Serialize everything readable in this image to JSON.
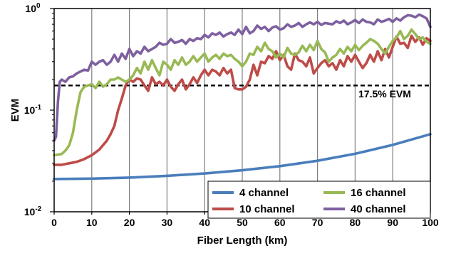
{
  "chart_data": {
    "type": "line",
    "xlabel": "Fiber Length (km)",
    "ylabel": "EVM",
    "xlim": [
      0,
      100
    ],
    "ylim": [
      0.01,
      1
    ],
    "y_scale": "log",
    "x_ticks": [
      0,
      10,
      20,
      30,
      40,
      50,
      60,
      70,
      80,
      90,
      100
    ],
    "x_tick_labels": [
      "0",
      "10",
      "20",
      "30",
      "40",
      "50",
      "60",
      "70",
      "80",
      "90",
      "100"
    ],
    "y_ticks": [
      {
        "value": 0.01,
        "base": "10",
        "exp": "-2"
      },
      {
        "value": 0.1,
        "base": "10",
        "exp": "-1"
      },
      {
        "value": 1,
        "base": "10",
        "exp": "0"
      }
    ],
    "grid": "vertical",
    "legend_position": "bottom-right",
    "reference_line": {
      "value": 0.175,
      "label": "17.5% EVM",
      "style": "dashed",
      "color": "#000000"
    },
    "series": [
      {
        "name": "4 channel",
        "color": "#4a7ebb",
        "x": [
          0,
          10,
          20,
          30,
          40,
          50,
          60,
          70,
          80,
          90,
          100
        ],
        "y": [
          0.021,
          0.0212,
          0.0217,
          0.0226,
          0.0238,
          0.0256,
          0.0281,
          0.0318,
          0.0372,
          0.0455,
          0.058
        ]
      },
      {
        "name": "10 channel",
        "color": "#be4b48",
        "x": [
          0,
          2,
          4,
          6,
          8,
          10,
          12,
          14,
          15,
          16,
          17,
          18,
          19,
          20,
          21,
          22,
          23,
          24,
          25,
          26,
          27,
          28,
          29,
          30,
          31,
          32,
          33,
          34,
          35,
          36,
          37,
          38,
          39,
          40,
          41,
          42,
          43,
          44,
          45,
          46,
          47,
          48,
          49,
          50,
          51,
          52,
          53,
          54,
          55,
          56,
          57,
          58,
          59,
          60,
          61,
          62,
          63,
          64,
          65,
          66,
          67,
          68,
          69,
          70,
          71,
          72,
          73,
          74,
          75,
          76,
          77,
          78,
          79,
          80,
          81,
          82,
          83,
          84,
          85,
          86,
          87,
          88,
          89,
          90,
          91,
          92,
          93,
          94,
          95,
          96,
          97,
          98,
          99,
          100
        ],
        "y": [
          0.029,
          0.029,
          0.03,
          0.031,
          0.033,
          0.036,
          0.041,
          0.05,
          0.058,
          0.07,
          0.1,
          0.13,
          0.175,
          0.2,
          0.19,
          0.205,
          0.2,
          0.175,
          0.155,
          0.21,
          0.18,
          0.19,
          0.175,
          0.2,
          0.17,
          0.155,
          0.18,
          0.2,
          0.16,
          0.18,
          0.21,
          0.185,
          0.22,
          0.25,
          0.22,
          0.25,
          0.24,
          0.22,
          0.26,
          0.23,
          0.25,
          0.165,
          0.16,
          0.16,
          0.17,
          0.2,
          0.28,
          0.22,
          0.3,
          0.29,
          0.34,
          0.32,
          0.38,
          0.31,
          0.35,
          0.27,
          0.25,
          0.36,
          0.31,
          0.3,
          0.27,
          0.33,
          0.23,
          0.26,
          0.29,
          0.31,
          0.27,
          0.29,
          0.25,
          0.31,
          0.27,
          0.34,
          0.3,
          0.35,
          0.3,
          0.26,
          0.29,
          0.35,
          0.3,
          0.38,
          0.31,
          0.4,
          0.33,
          0.42,
          0.53,
          0.45,
          0.46,
          0.41,
          0.54,
          0.47,
          0.52,
          0.44,
          0.51,
          0.48
        ]
      },
      {
        "name": "16 channel",
        "color": "#98b954",
        "x": [
          0,
          2,
          3,
          4,
          5,
          6,
          7,
          8,
          9,
          10,
          11,
          12,
          13,
          14,
          15,
          16,
          17,
          18,
          19,
          20,
          21,
          22,
          23,
          24,
          25,
          26,
          27,
          28,
          29,
          30,
          31,
          32,
          33,
          34,
          35,
          36,
          37,
          38,
          39,
          40,
          41,
          42,
          43,
          44,
          45,
          46,
          47,
          48,
          49,
          50,
          51,
          52,
          53,
          54,
          55,
          56,
          57,
          58,
          59,
          60,
          61,
          62,
          63,
          64,
          65,
          66,
          67,
          68,
          69,
          70,
          71,
          72,
          73,
          74,
          75,
          76,
          77,
          78,
          79,
          80,
          81,
          82,
          83,
          84,
          85,
          86,
          87,
          88,
          89,
          90,
          91,
          92,
          93,
          94,
          95,
          96,
          97,
          98,
          99,
          100
        ],
        "y": [
          0.036,
          0.037,
          0.04,
          0.045,
          0.06,
          0.1,
          0.15,
          0.17,
          0.175,
          0.18,
          0.165,
          0.19,
          0.17,
          0.18,
          0.2,
          0.2,
          0.21,
          0.2,
          0.19,
          0.2,
          0.22,
          0.26,
          0.23,
          0.3,
          0.25,
          0.31,
          0.26,
          0.22,
          0.3,
          0.28,
          0.25,
          0.31,
          0.28,
          0.33,
          0.28,
          0.3,
          0.34,
          0.3,
          0.33,
          0.36,
          0.3,
          0.33,
          0.35,
          0.32,
          0.36,
          0.34,
          0.35,
          0.32,
          0.3,
          0.27,
          0.3,
          0.36,
          0.35,
          0.42,
          0.38,
          0.46,
          0.4,
          0.38,
          0.33,
          0.36,
          0.33,
          0.41,
          0.36,
          0.35,
          0.37,
          0.43,
          0.38,
          0.44,
          0.39,
          0.48,
          0.4,
          0.37,
          0.3,
          0.33,
          0.35,
          0.4,
          0.36,
          0.42,
          0.38,
          0.44,
          0.39,
          0.43,
          0.46,
          0.5,
          0.48,
          0.45,
          0.4,
          0.36,
          0.42,
          0.48,
          0.52,
          0.6,
          0.5,
          0.54,
          0.62,
          0.56,
          0.5,
          0.52,
          0.47,
          0.45
        ]
      },
      {
        "name": "40 channel",
        "color": "#7e60a0",
        "x": [
          0,
          0.5,
          1,
          1.5,
          2,
          3,
          4,
          5,
          6,
          7,
          8,
          9,
          10,
          11,
          12,
          13,
          14,
          15,
          16,
          17,
          18,
          19,
          20,
          21,
          22,
          23,
          24,
          25,
          26,
          27,
          28,
          29,
          30,
          31,
          32,
          33,
          34,
          35,
          36,
          37,
          38,
          39,
          40,
          41,
          42,
          43,
          44,
          45,
          46,
          47,
          48,
          49,
          50,
          51,
          52,
          53,
          54,
          55,
          56,
          57,
          58,
          59,
          60,
          61,
          62,
          63,
          64,
          65,
          66,
          67,
          68,
          69,
          70,
          71,
          72,
          73,
          74,
          75,
          76,
          77,
          78,
          79,
          80,
          81,
          82,
          83,
          84,
          85,
          86,
          87,
          88,
          89,
          90,
          91,
          92,
          93,
          94,
          95,
          96,
          97,
          98,
          99,
          100
        ],
        "y": [
          0.05,
          0.055,
          0.12,
          0.19,
          0.2,
          0.19,
          0.21,
          0.215,
          0.23,
          0.24,
          0.25,
          0.245,
          0.3,
          0.28,
          0.3,
          0.31,
          0.28,
          0.3,
          0.35,
          0.3,
          0.36,
          0.32,
          0.4,
          0.34,
          0.38,
          0.36,
          0.42,
          0.38,
          0.4,
          0.42,
          0.46,
          0.44,
          0.45,
          0.5,
          0.46,
          0.47,
          0.49,
          0.45,
          0.5,
          0.48,
          0.51,
          0.5,
          0.55,
          0.52,
          0.57,
          0.55,
          0.58,
          0.53,
          0.56,
          0.58,
          0.55,
          0.62,
          0.56,
          0.66,
          0.57,
          0.6,
          0.68,
          0.63,
          0.66,
          0.6,
          0.65,
          0.67,
          0.62,
          0.64,
          0.7,
          0.66,
          0.68,
          0.72,
          0.66,
          0.7,
          0.73,
          0.7,
          0.74,
          0.69,
          0.72,
          0.71,
          0.7,
          0.75,
          0.72,
          0.76,
          0.7,
          0.73,
          0.77,
          0.72,
          0.78,
          0.74,
          0.73,
          0.7,
          0.78,
          0.74,
          0.76,
          0.79,
          0.74,
          0.8,
          0.76,
          0.82,
          0.86,
          0.85,
          0.82,
          0.87,
          0.84,
          0.8,
          0.66
        ]
      }
    ]
  }
}
